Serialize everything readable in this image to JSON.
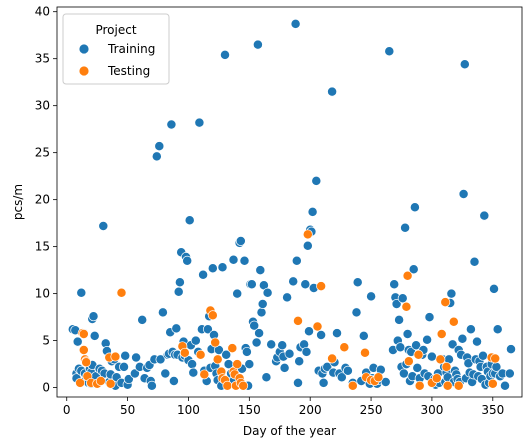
{
  "chart_data": {
    "type": "scatter",
    "title": "",
    "xlabel": "Day of the year",
    "ylabel": "pcs/m",
    "xlim": [
      -8,
      374
    ],
    "ylim": [
      -1,
      40.5
    ],
    "xticks": [
      0,
      50,
      100,
      150,
      200,
      250,
      300,
      350
    ],
    "yticks": [
      0,
      5,
      10,
      15,
      20,
      25,
      30,
      35,
      40
    ],
    "grid": false,
    "legend": {
      "title": "Project",
      "placement": "top-left"
    },
    "series": [
      {
        "name": "Training",
        "color": "#1f77b4",
        "points": [
          [
            5,
            6.2
          ],
          [
            7,
            6.1
          ],
          [
            8,
            1.5
          ],
          [
            8,
            1.0
          ],
          [
            9,
            4.9
          ],
          [
            10,
            2.0
          ],
          [
            12,
            1.8
          ],
          [
            12,
            10.1
          ],
          [
            14,
            5.8
          ],
          [
            15,
            1.5
          ],
          [
            15,
            0.7
          ],
          [
            17,
            1.2
          ],
          [
            18,
            0.5
          ],
          [
            19,
            2.0
          ],
          [
            20,
            0.4
          ],
          [
            20,
            1.6
          ],
          [
            21,
            2.4
          ],
          [
            21,
            7.3
          ],
          [
            22,
            7.6
          ],
          [
            23,
            5.5
          ],
          [
            24,
            1.2
          ],
          [
            25,
            0.4
          ],
          [
            27,
            2.0
          ],
          [
            29,
            1.8
          ],
          [
            30,
            17.2
          ],
          [
            31,
            1.5
          ],
          [
            32,
            4.7
          ],
          [
            33,
            3.9
          ],
          [
            35,
            0.6
          ],
          [
            36,
            1.4
          ],
          [
            37,
            2.8
          ],
          [
            39,
            3.0
          ],
          [
            40,
            0.2
          ],
          [
            41,
            1.1
          ],
          [
            43,
            2.2
          ],
          [
            45,
            0.5
          ],
          [
            47,
            2.2
          ],
          [
            48,
            3.4
          ],
          [
            50,
            0.3
          ],
          [
            51,
            0.9
          ],
          [
            56,
            1.5
          ],
          [
            57,
            3.2
          ],
          [
            60,
            2.2
          ],
          [
            62,
            7.2
          ],
          [
            64,
            1.0
          ],
          [
            66,
            2.1
          ],
          [
            68,
            2.4
          ],
          [
            69,
            0.7
          ],
          [
            70,
            0.2
          ],
          [
            72,
            3.0
          ],
          [
            74,
            24.6
          ],
          [
            76,
            25.7
          ],
          [
            77,
            3.0
          ],
          [
            79,
            8.0
          ],
          [
            81,
            1.5
          ],
          [
            83,
            3.5
          ],
          [
            84,
            3.6
          ],
          [
            85,
            5.9
          ],
          [
            86,
            28.0
          ],
          [
            87,
            3.8
          ],
          [
            88,
            0.7
          ],
          [
            89,
            3.5
          ],
          [
            90,
            6.3
          ],
          [
            91,
            3.5
          ],
          [
            92,
            10.2
          ],
          [
            93,
            11.2
          ],
          [
            94,
            14.4
          ],
          [
            95,
            3.2
          ],
          [
            96,
            4.9
          ],
          [
            97,
            3.4
          ],
          [
            98,
            13.9
          ],
          [
            99,
            13.5
          ],
          [
            100,
            2.9
          ],
          [
            101,
            17.8
          ],
          [
            102,
            4.5
          ],
          [
            103,
            2.5
          ],
          [
            104,
            1.6
          ],
          [
            106,
            5.0
          ],
          [
            108,
            3.8
          ],
          [
            109,
            28.2
          ],
          [
            111,
            6.2
          ],
          [
            112,
            12.0
          ],
          [
            113,
            1.8
          ],
          [
            115,
            0.7
          ],
          [
            116,
            6.2
          ],
          [
            117,
            7.6
          ],
          [
            118,
            2.1
          ],
          [
            119,
            4.1
          ],
          [
            120,
            12.7
          ],
          [
            121,
            5.6
          ],
          [
            122,
            2.3
          ],
          [
            123,
            1.5
          ],
          [
            124,
            0.8
          ],
          [
            125,
            4.0
          ],
          [
            127,
            0.2
          ],
          [
            128,
            12.8
          ],
          [
            130,
            35.4
          ],
          [
            131,
            3.5
          ],
          [
            133,
            2.5
          ],
          [
            135,
            1.5
          ],
          [
            136,
            0.6
          ],
          [
            137,
            13.6
          ],
          [
            140,
            10.0
          ],
          [
            142,
            15.4
          ],
          [
            143,
            15.6
          ],
          [
            144,
            2.0
          ],
          [
            146,
            13.5
          ],
          [
            147,
            4.2
          ],
          [
            148,
            3.8
          ],
          [
            149,
            0.2
          ],
          [
            150,
            2.5
          ],
          [
            151,
            11.0
          ],
          [
            152,
            11.0
          ],
          [
            153,
            7.0
          ],
          [
            154,
            6.6
          ],
          [
            156,
            4.8
          ],
          [
            157,
            36.5
          ],
          [
            158,
            5.8
          ],
          [
            159,
            12.5
          ],
          [
            160,
            8.0
          ],
          [
            161,
            8.9
          ],
          [
            162,
            10.9
          ],
          [
            164,
            1.1
          ],
          [
            165,
            10.1
          ],
          [
            168,
            4.6
          ],
          [
            172,
            2.8
          ],
          [
            173,
            3.2
          ],
          [
            175,
            3.8
          ],
          [
            177,
            4.5
          ],
          [
            178,
            3.3
          ],
          [
            179,
            2.1
          ],
          [
            181,
            9.6
          ],
          [
            183,
            3.6
          ],
          [
            186,
            11.3
          ],
          [
            188,
            38.7
          ],
          [
            189,
            13.5
          ],
          [
            190,
            0.5
          ],
          [
            191,
            2.8
          ],
          [
            192,
            4.3
          ],
          [
            195,
            4.6
          ],
          [
            196,
            11.0
          ],
          [
            197,
            3.8
          ],
          [
            198,
            15.1
          ],
          [
            199,
            6.0
          ],
          [
            200,
            16.8
          ],
          [
            201,
            16.6
          ],
          [
            202,
            18.7
          ],
          [
            203,
            10.6
          ],
          [
            205,
            22.0
          ],
          [
            207,
            1.8
          ],
          [
            209,
            5.6
          ],
          [
            210,
            1.5
          ],
          [
            211,
            0.5
          ],
          [
            212,
            2.0
          ],
          [
            214,
            2.2
          ],
          [
            218,
            31.5
          ],
          [
            219,
            1.6
          ],
          [
            220,
            2.7
          ],
          [
            222,
            5.8
          ],
          [
            224,
            1.5
          ],
          [
            226,
            1.1
          ],
          [
            229,
            2.1
          ],
          [
            231,
            1.8
          ],
          [
            235,
            0.5
          ],
          [
            238,
            8.0
          ],
          [
            239,
            11.2
          ],
          [
            242,
            0.7
          ],
          [
            244,
            5.5
          ],
          [
            246,
            1.6
          ],
          [
            249,
            0.4
          ],
          [
            250,
            9.7
          ],
          [
            251,
            1.0
          ],
          [
            252,
            2.1
          ],
          [
            253,
            0.8
          ],
          [
            255,
            0.4
          ],
          [
            256,
            0.8
          ],
          [
            258,
            1.9
          ],
          [
            262,
            0.6
          ],
          [
            265,
            35.8
          ],
          [
            268,
            4.0
          ],
          [
            269,
            11.0
          ],
          [
            270,
            9.6
          ],
          [
            271,
            8.9
          ],
          [
            272,
            5.0
          ],
          [
            273,
            7.2
          ],
          [
            274,
            4.3
          ],
          [
            275,
            2.2
          ],
          [
            276,
            9.5
          ],
          [
            277,
            1.5
          ],
          [
            278,
            17.0
          ],
          [
            279,
            2.5
          ],
          [
            280,
            5.7
          ],
          [
            281,
            4.0
          ],
          [
            282,
            0.7
          ],
          [
            283,
            3.8
          ],
          [
            284,
            1.2
          ],
          [
            285,
            12.6
          ],
          [
            286,
            19.2
          ],
          [
            287,
            4.5
          ],
          [
            288,
            2.1
          ],
          [
            290,
            1.0
          ],
          [
            292,
            3.5
          ],
          [
            293,
            4.0
          ],
          [
            294,
            1.5
          ],
          [
            296,
            5.1
          ],
          [
            297,
            1.2
          ],
          [
            298,
            7.5
          ],
          [
            300,
            3.3
          ],
          [
            301,
            0.5
          ],
          [
            302,
            0.9
          ],
          [
            303,
            0.3
          ],
          [
            305,
            1.5
          ],
          [
            306,
            0.5
          ],
          [
            309,
            3.0
          ],
          [
            310,
            2.2
          ],
          [
            311,
            0.6
          ],
          [
            312,
            1.6
          ],
          [
            313,
            1.1
          ],
          [
            314,
            3.0
          ],
          [
            315,
            9.0
          ],
          [
            316,
            10.0
          ],
          [
            317,
            4.6
          ],
          [
            318,
            0.6
          ],
          [
            319,
            1.8
          ],
          [
            320,
            1.4
          ],
          [
            321,
            0.9
          ],
          [
            322,
            4.0
          ],
          [
            323,
            0.6
          ],
          [
            324,
            3.5
          ],
          [
            325,
            5.2
          ],
          [
            326,
            20.6
          ],
          [
            327,
            34.4
          ],
          [
            328,
            1.0
          ],
          [
            329,
            3.2
          ],
          [
            330,
            2.6
          ],
          [
            331,
            1.6
          ],
          [
            332,
            6.2
          ],
          [
            333,
            0.6
          ],
          [
            334,
            1.4
          ],
          [
            335,
            13.4
          ],
          [
            336,
            3.0
          ],
          [
            337,
            4.9
          ],
          [
            338,
            1.2
          ],
          [
            339,
            2.8
          ],
          [
            340,
            2.2
          ],
          [
            341,
            0.9
          ],
          [
            342,
            3.4
          ],
          [
            343,
            18.3
          ],
          [
            344,
            0.3
          ],
          [
            345,
            2.2
          ],
          [
            346,
            1.7
          ],
          [
            347,
            0.5
          ],
          [
            348,
            1.2
          ],
          [
            349,
            2.5
          ],
          [
            350,
            1.5
          ],
          [
            351,
            10.5
          ],
          [
            352,
            1.5
          ],
          [
            353,
            2.2
          ],
          [
            354,
            6.2
          ],
          [
            356,
            1.2
          ],
          [
            358,
            1.5
          ],
          [
            360,
            0.2
          ],
          [
            364,
            1.5
          ],
          [
            365,
            4.1
          ]
        ]
      },
      {
        "name": "Testing",
        "color": "#ff7f0e",
        "points": [
          [
            11,
            0.5
          ],
          [
            13,
            5.8
          ],
          [
            14,
            5.7
          ],
          [
            14,
            4.0
          ],
          [
            15,
            3.0
          ],
          [
            16,
            2.8
          ],
          [
            16,
            2.7
          ],
          [
            17,
            1.2
          ],
          [
            20,
            0.5
          ],
          [
            25,
            0.4
          ],
          [
            28,
            0.7
          ],
          [
            35,
            3.2
          ],
          [
            36,
            0.4
          ],
          [
            40,
            3.3
          ],
          [
            45,
            10.1
          ],
          [
            95,
            4.4
          ],
          [
            97,
            3.7
          ],
          [
            110,
            3.5
          ],
          [
            113,
            1.4
          ],
          [
            118,
            8.2
          ],
          [
            120,
            7.7
          ],
          [
            122,
            4.8
          ],
          [
            124,
            3.0
          ],
          [
            127,
            1.7
          ],
          [
            128,
            1.0
          ],
          [
            130,
            0.8
          ],
          [
            132,
            0.2
          ],
          [
            136,
            4.2
          ],
          [
            137,
            1.7
          ],
          [
            138,
            1.4
          ],
          [
            139,
            0.2
          ],
          [
            140,
            2.5
          ],
          [
            142,
            1.0
          ],
          [
            143,
            0.5
          ],
          [
            145,
            0.2
          ],
          [
            190,
            7.1
          ],
          [
            198,
            16.3
          ],
          [
            206,
            6.5
          ],
          [
            209,
            10.8
          ],
          [
            218,
            3.1
          ],
          [
            228,
            4.3
          ],
          [
            235,
            0.2
          ],
          [
            245,
            3.7
          ],
          [
            246,
            1.1
          ],
          [
            250,
            0.8
          ],
          [
            253,
            0.7
          ],
          [
            256,
            1.1
          ],
          [
            279,
            8.6
          ],
          [
            280,
            11.9
          ],
          [
            281,
            2.8
          ],
          [
            289,
            3.5
          ],
          [
            290,
            0.2
          ],
          [
            300,
            0.5
          ],
          [
            304,
            1.0
          ],
          [
            307,
            3.0
          ],
          [
            308,
            5.7
          ],
          [
            311,
            9.1
          ],
          [
            312,
            2.2
          ],
          [
            313,
            0.2
          ],
          [
            318,
            7.0
          ],
          [
            322,
            0.2
          ],
          [
            349,
            3.2
          ],
          [
            350,
            0.4
          ],
          [
            352,
            3.1
          ]
        ]
      }
    ]
  }
}
